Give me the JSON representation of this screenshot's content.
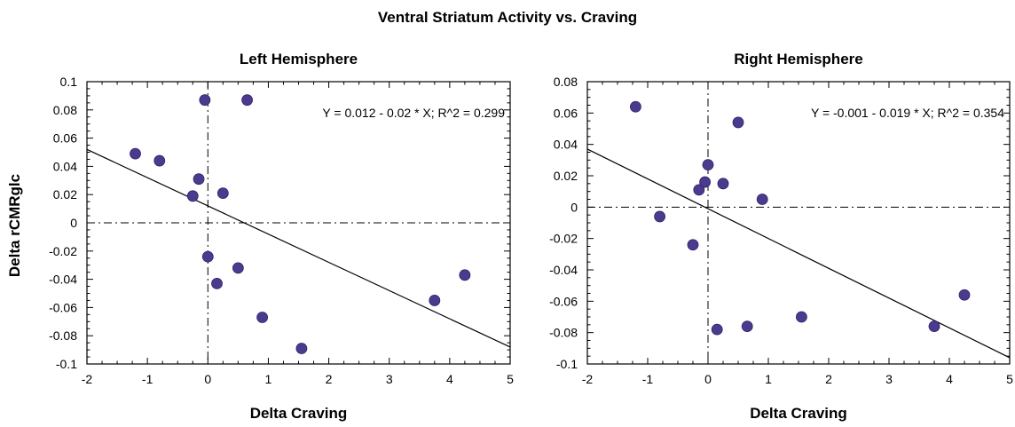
{
  "figure": {
    "title": "Ventral Striatum Activity vs. Craving",
    "shared_ylabel": "Delta rCMRglc"
  },
  "colors": {
    "point": "#4b3a8e",
    "axis": "#000000",
    "fit_line": "#000000"
  },
  "chart_data": [
    {
      "type": "scatter",
      "title": "Left Hemisphere",
      "xlabel": "Delta Craving",
      "ylabel": "Delta rCMRglc",
      "xlim": [
        -2,
        5
      ],
      "ylim": [
        -0.1,
        0.1
      ],
      "xticks": [
        -2,
        -1,
        0,
        1,
        2,
        3,
        4,
        5
      ],
      "yticks": [
        -0.1,
        -0.08,
        -0.06,
        -0.04,
        -0.02,
        0,
        0.02,
        0.04,
        0.06,
        0.08,
        0.1
      ],
      "xtick_labels": [
        "-2",
        "-1",
        "0",
        "1",
        "2",
        "3",
        "4",
        "5"
      ],
      "ytick_labels": [
        "-0.1",
        "-0.08",
        "-0.06",
        "-0.04",
        "-0.02",
        "0",
        "0.02",
        "0.04",
        "0.06",
        "0.08",
        "0.1"
      ],
      "grid": false,
      "reference_lines": {
        "x": 0,
        "y": 0,
        "style": "dash-dot"
      },
      "points": [
        {
          "x": -1.2,
          "y": 0.049
        },
        {
          "x": -0.8,
          "y": 0.044
        },
        {
          "x": -0.25,
          "y": 0.019
        },
        {
          "x": -0.15,
          "y": 0.031
        },
        {
          "x": -0.05,
          "y": 0.087
        },
        {
          "x": 0.0,
          "y": -0.024
        },
        {
          "x": 0.15,
          "y": -0.043
        },
        {
          "x": 0.25,
          "y": 0.021
        },
        {
          "x": 0.5,
          "y": -0.032
        },
        {
          "x": 0.65,
          "y": 0.087
        },
        {
          "x": 0.9,
          "y": -0.067
        },
        {
          "x": 1.55,
          "y": -0.089
        },
        {
          "x": 3.75,
          "y": -0.055
        },
        {
          "x": 4.25,
          "y": -0.037
        }
      ],
      "fit": {
        "intercept": 0.012,
        "slope": -0.02
      },
      "equation": "Y = 0.012 - 0.02 * X; R^2 = 0.299"
    },
    {
      "type": "scatter",
      "title": "Right Hemisphere",
      "xlabel": "Delta Craving",
      "ylabel": "",
      "xlim": [
        -2,
        5
      ],
      "ylim": [
        -0.1,
        0.08
      ],
      "xticks": [
        -2,
        -1,
        0,
        1,
        2,
        3,
        4,
        5
      ],
      "yticks": [
        -0.1,
        -0.08,
        -0.06,
        -0.04,
        -0.02,
        0,
        0.02,
        0.04,
        0.06,
        0.08
      ],
      "xtick_labels": [
        "-2",
        "-1",
        "0",
        "1",
        "2",
        "3",
        "4",
        "5"
      ],
      "ytick_labels": [
        "-0.1",
        "-0.08",
        "-0.06",
        "-0.04",
        "-0.02",
        "0",
        "0.02",
        "0.04",
        "0.06",
        "0.08"
      ],
      "grid": false,
      "reference_lines": {
        "x": 0,
        "y": 0,
        "style": "dash-dot"
      },
      "points": [
        {
          "x": -1.2,
          "y": 0.064
        },
        {
          "x": -0.8,
          "y": -0.006
        },
        {
          "x": -0.25,
          "y": -0.024
        },
        {
          "x": -0.15,
          "y": 0.011
        },
        {
          "x": -0.05,
          "y": 0.016
        },
        {
          "x": 0.0,
          "y": 0.027
        },
        {
          "x": 0.15,
          "y": -0.078
        },
        {
          "x": 0.25,
          "y": 0.015
        },
        {
          "x": 0.5,
          "y": 0.054
        },
        {
          "x": 0.65,
          "y": -0.076
        },
        {
          "x": 0.9,
          "y": 0.005
        },
        {
          "x": 1.55,
          "y": -0.07
        },
        {
          "x": 3.75,
          "y": -0.076
        },
        {
          "x": 4.25,
          "y": -0.056
        }
      ],
      "fit": {
        "intercept": -0.001,
        "slope": -0.019
      },
      "equation": "Y = -0.001 - 0.019 * X; R^2 = 0.354"
    }
  ]
}
